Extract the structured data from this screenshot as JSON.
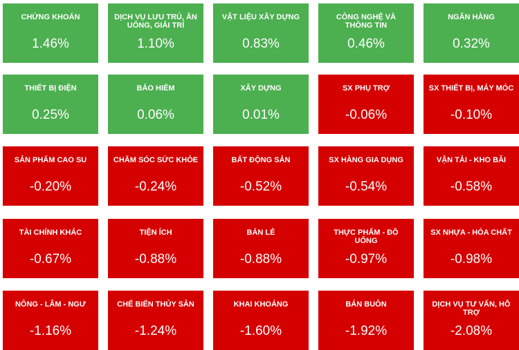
{
  "chart_data": {
    "type": "tiles",
    "categories": [
      "CHỨNG KHOÁN",
      "DỊCH VỤ LƯU TRÚ, ĂN UỐNG, GIẢI TRÍ",
      "VẬT LIỆU XÂY DỰNG",
      "CÔNG NGHỆ VÀ THÔNG TIN",
      "NGÂN HÀNG",
      "THIẾT BỊ ĐIỆN",
      "BẢO HIỂM",
      "XÂY DỰNG",
      "SX PHỤ TRỢ",
      "SX THIẾT BỊ, MÁY MÓC",
      "SẢN PHẨM CAO SU",
      "CHĂM SÓC SỨC KHỎE",
      "BẤT ĐỘNG SẢN",
      "SX HÀNG GIA DỤNG",
      "VẬN TẢI - KHO BÃI",
      "TÀI CHÍNH KHÁC",
      "TIỆN ÍCH",
      "BÁN LẺ",
      "THỰC PHẨM - ĐỒ UỐNG",
      "SX NHỰA - HÓA CHẤT",
      "NÔNG - LÂM - NGƯ",
      "CHẾ BIẾN THỦY SẢN",
      "KHAI KHOÁNG",
      "BÁN BUÔN",
      "DỊCH VỤ TƯ VẤN, HỖ TRỢ"
    ],
    "values": [
      1.46,
      1.1,
      0.83,
      0.46,
      0.32,
      0.25,
      0.06,
      0.01,
      -0.06,
      -0.1,
      -0.2,
      -0.24,
      -0.52,
      -0.54,
      -0.58,
      -0.67,
      -0.88,
      -0.88,
      -0.97,
      -0.98,
      -1.16,
      -1.24,
      -1.6,
      -1.92,
      -2.08
    ],
    "value_labels": [
      "1.46%",
      "1.10%",
      "0.83%",
      "0.46%",
      "0.32%",
      "0.25%",
      "0.06%",
      "0.01%",
      "-0.06%",
      "-0.10%",
      "-0.20%",
      "-0.24%",
      "-0.52%",
      "-0.54%",
      "-0.58%",
      "-0.67%",
      "-0.88%",
      "-0.88%",
      "-0.97%",
      "-0.98%",
      "-1.16%",
      "-1.24%",
      "-1.60%",
      "-1.92%",
      "-2.08%"
    ],
    "up_color": "#4caf50",
    "down_color": "#d50000"
  }
}
